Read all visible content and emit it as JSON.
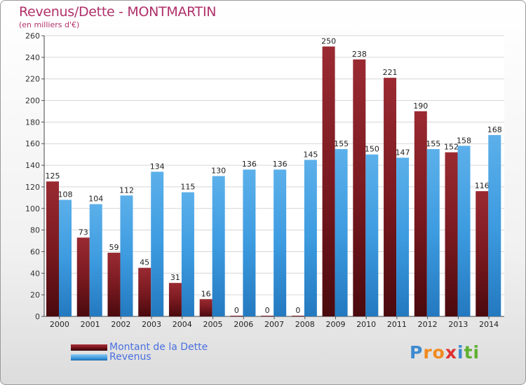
{
  "title": "Revenus/Dette - MONTMARTIN",
  "subtitle": "(en milliers d'€)",
  "colors": {
    "dette": "#7a1a20",
    "revenus": "#3d9be0",
    "title": "#b0306a"
  },
  "legend": [
    {
      "label": "Montant de la Dette",
      "color": "#6a1218"
    },
    {
      "label": "Revenus",
      "color": "#3d9be0"
    }
  ],
  "logo": {
    "text": "Proxiti",
    "letters": [
      "P",
      "r",
      "o",
      "x",
      "i",
      "t",
      "i"
    ],
    "colors": [
      "#3d8ad0",
      "#f08a20",
      "#f08a20",
      "#e03030",
      "#3d8ad0",
      "#60b030",
      "#60b030"
    ]
  },
  "chart_data": {
    "type": "bar",
    "categories": [
      "2000",
      "2001",
      "2002",
      "2003",
      "2004",
      "2005",
      "2006",
      "2007",
      "2008",
      "2009",
      "2010",
      "2011",
      "2012",
      "2013",
      "2014"
    ],
    "series": [
      {
        "name": "Montant de la Dette",
        "values": [
          125,
          73,
          59,
          45,
          31,
          16,
          0,
          0,
          0,
          250,
          238,
          221,
          190,
          152,
          116
        ],
        "labels": [
          "125",
          "73",
          "59",
          "45",
          "31",
          "16",
          "0",
          "0",
          "0",
          "250",
          "238",
          "221",
          "190",
          "152",
          "116"
        ]
      },
      {
        "name": "Revenus",
        "values": [
          108,
          104,
          112,
          134,
          115,
          130,
          136,
          136,
          145,
          155,
          150,
          147,
          155,
          158,
          168
        ],
        "labels": [
          "108",
          "104",
          "112",
          "134",
          "115",
          "130",
          "136",
          "136",
          "145",
          "155",
          "150",
          "147",
          "155",
          "158",
          "168"
        ]
      }
    ],
    "ylim": [
      0,
      260
    ],
    "yticks": [
      "0",
      "20",
      "40",
      "60",
      "80",
      "100",
      "120",
      "140",
      "160",
      "180",
      "200",
      "220",
      "240",
      "260"
    ],
    "grid": true,
    "legend_position": "bottom-left"
  }
}
